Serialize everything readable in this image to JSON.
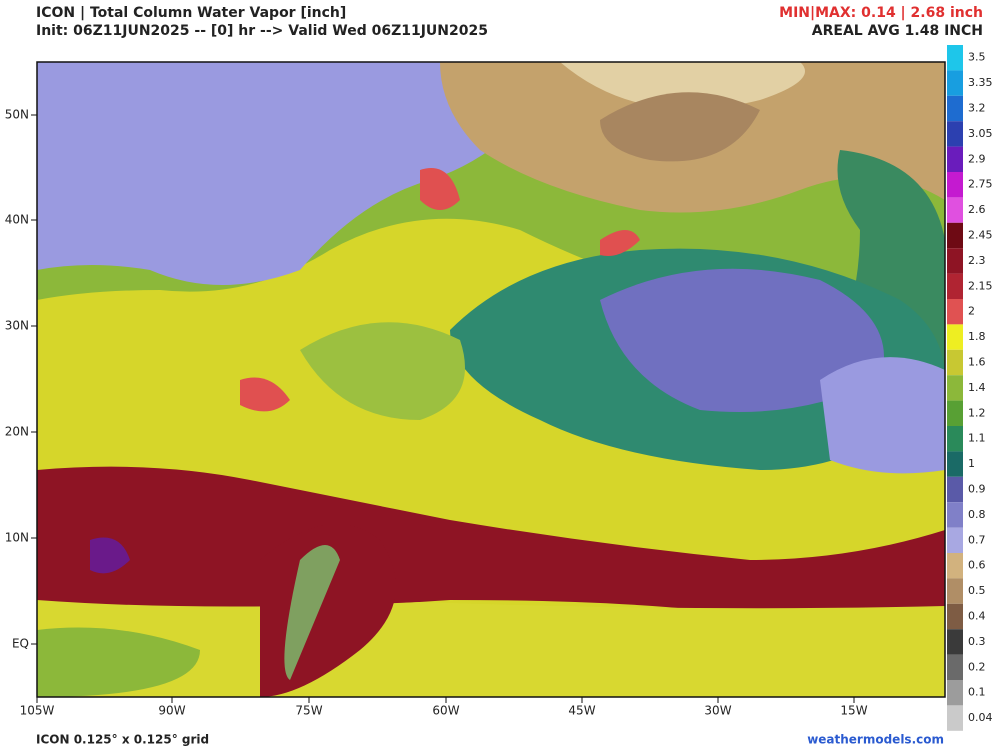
{
  "header": {
    "title": "ICON | Total Column Water Vapor [inch]",
    "subtitle": "Init: 06Z11JUN2025 -- [0] hr --> Valid Wed 06Z11JUN2025",
    "minmax": "MIN|MAX: 0.14 | 2.68 inch",
    "areal_avg": "AREAL AVG 1.48 INCH"
  },
  "map": {
    "x_labels": [
      "105W",
      "90W",
      "75W",
      "60W",
      "45W",
      "30W",
      "15W"
    ],
    "y_labels": [
      "50N",
      "40N",
      "30N",
      "20N",
      "10N",
      "EQ"
    ]
  },
  "colorbar": {
    "labels": [
      "3.5",
      "3.35",
      "3.2",
      "3.05",
      "2.9",
      "2.75",
      "2.6",
      "2.45",
      "2.3",
      "2.15",
      "2",
      "1.8",
      "1.6",
      "1.4",
      "1.2",
      "1.1",
      "1",
      "0.9",
      "0.8",
      "0.7",
      "0.6",
      "0.5",
      "0.4",
      "0.3",
      "0.2",
      "0.1",
      "0.04"
    ]
  },
  "footer": {
    "grid": "ICON 0.125° x 0.125° grid",
    "site": "weathermodels.com"
  }
}
